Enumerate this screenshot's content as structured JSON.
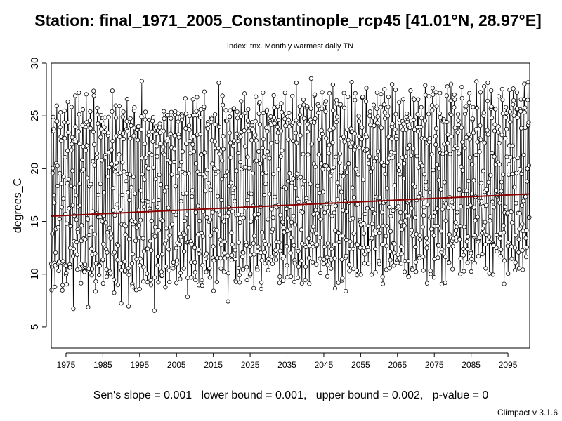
{
  "chart_data": {
    "type": "line",
    "title": "Station: final_1971_2005_Constantinople_rcp45 [41.01°N, 28.97°E]",
    "subtitle": "Index: tnx. Monthly warmest daily TN",
    "xlabel": "",
    "ylabel": "degrees_C",
    "xlim": [
      1971,
      2100.9
    ],
    "ylim": [
      3,
      30
    ],
    "x_ticks": [
      1975,
      1985,
      1995,
      2005,
      2015,
      2025,
      2035,
      2045,
      2055,
      2065,
      2075,
      2085,
      2095
    ],
    "y_ticks": [
      5,
      10,
      15,
      20,
      25,
      30
    ],
    "grid": false,
    "series": [
      {
        "style": "line-with-open-circles",
        "frequency": "monthly",
        "start": 1971,
        "x_step": 0.0833,
        "seasonal_min": 9.5,
        "seasonal_max": 24.8,
        "trend_start": 15.5,
        "trend_end": 17.6,
        "noise_sd": 1.3
      }
    ],
    "trend_line": {
      "x": [
        1971,
        2100.9
      ],
      "y": [
        15.5,
        17.6
      ],
      "color": "#8b0000"
    },
    "footer": "Sen's slope = 0.001   lower bound = 0.001,   upper bound = 0.002,   p-value = 0",
    "credit": "Climpact v 3.1.6"
  }
}
